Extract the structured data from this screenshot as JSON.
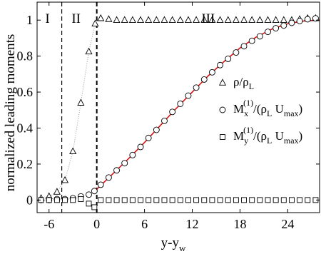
{
  "chart_data": {
    "type": "scatter",
    "title": "",
    "xlabel": "y-y_w",
    "ylabel": "normalized leading moments",
    "xlim": [
      -7.5,
      28
    ],
    "ylim": [
      -0.07,
      1.1
    ],
    "x_ticks": [
      {
        "value": -6,
        "label": "-6"
      },
      {
        "value": 0,
        "label": "0"
      },
      {
        "value": 6,
        "label": "6"
      },
      {
        "value": 12,
        "label": "12"
      },
      {
        "value": 18,
        "label": "18"
      },
      {
        "value": 24,
        "label": "24"
      }
    ],
    "y_ticks": [
      {
        "value": 0,
        "label": "0"
      },
      {
        "value": 0.2,
        "label": "0.2"
      },
      {
        "value": 0.4,
        "label": "0.4"
      },
      {
        "value": 0.6,
        "label": "0.6"
      },
      {
        "value": 0.8,
        "label": "0.8"
      },
      {
        "value": 1,
        "label": "1"
      }
    ],
    "regions": [
      {
        "label": "I",
        "x": -6.2
      },
      {
        "label": "II",
        "x": -2.6
      },
      {
        "label": "III",
        "x": 14
      }
    ],
    "boundaries": [
      -4.4,
      0
    ],
    "grid": false,
    "legend_position": "right",
    "series": [
      {
        "name": "ρ/ρ_L",
        "legend_main": "ρ/ρ",
        "legend_sub": "L",
        "marker": "triangle",
        "points": [
          [
            -7,
            0.01
          ],
          [
            -6,
            0.02
          ],
          [
            -5,
            0.045
          ],
          [
            -4,
            0.11
          ],
          [
            -3,
            0.27
          ],
          [
            -2,
            0.54
          ],
          [
            -1,
            0.825
          ],
          [
            -0.2,
            0.98
          ],
          [
            0.5,
            1.01
          ],
          [
            1.5,
            1.005
          ],
          [
            2.5,
            1.0
          ],
          [
            3.5,
            1.0
          ],
          [
            4.5,
            1.0
          ],
          [
            5.5,
            1.0
          ],
          [
            6.5,
            1.0
          ],
          [
            7.5,
            1.0
          ],
          [
            8.5,
            1.0
          ],
          [
            9.5,
            1.0
          ],
          [
            10.5,
            1.0
          ],
          [
            11.5,
            1.0
          ],
          [
            12.5,
            1.0
          ],
          [
            13.5,
            1.0
          ],
          [
            14.5,
            1.0
          ],
          [
            15.5,
            1.0
          ],
          [
            16.5,
            1.0
          ],
          [
            17.5,
            1.0
          ],
          [
            18.5,
            1.0
          ],
          [
            19.5,
            1.0
          ],
          [
            20.5,
            1.0
          ],
          [
            21.5,
            1.0
          ],
          [
            22.5,
            1.0
          ],
          [
            23.5,
            1.0
          ],
          [
            24.5,
            1.0
          ],
          [
            25.5,
            1.005
          ],
          [
            26.5,
            1.01
          ],
          [
            27.5,
            1.01
          ]
        ]
      },
      {
        "name": "M_x^(1)/(ρ_L U_max)",
        "legend_main": "M",
        "legend_sup": "(1)",
        "legend_sub": "x",
        "legend_rest": "/(ρ",
        "legend_sub2": "L",
        "legend_rest2": " U",
        "legend_sub3": "max",
        "legend_end": ")",
        "marker": "circle",
        "points": [
          [
            -7,
            0.0
          ],
          [
            -6,
            0.0
          ],
          [
            -5,
            0.005
          ],
          [
            -4,
            0.005
          ],
          [
            -3,
            0.01
          ],
          [
            -2,
            0.02
          ],
          [
            -1,
            0.03
          ],
          [
            -0.3,
            0.05
          ],
          [
            0.5,
            0.085
          ],
          [
            1.5,
            0.125
          ],
          [
            2.5,
            0.165
          ],
          [
            3.5,
            0.205
          ],
          [
            4.5,
            0.25
          ],
          [
            5.5,
            0.295
          ],
          [
            6.5,
            0.345
          ],
          [
            7.5,
            0.39
          ],
          [
            8.5,
            0.44
          ],
          [
            9.5,
            0.49
          ],
          [
            10.5,
            0.535
          ],
          [
            11.5,
            0.58
          ],
          [
            12.5,
            0.625
          ],
          [
            13.5,
            0.67
          ],
          [
            14.5,
            0.71
          ],
          [
            15.5,
            0.75
          ],
          [
            16.5,
            0.785
          ],
          [
            17.5,
            0.82
          ],
          [
            18.5,
            0.855
          ],
          [
            19.5,
            0.885
          ],
          [
            20.5,
            0.91
          ],
          [
            21.5,
            0.935
          ],
          [
            22.5,
            0.955
          ],
          [
            23.5,
            0.97
          ],
          [
            24.5,
            0.985
          ],
          [
            25.5,
            0.995
          ],
          [
            26.5,
            1.005
          ],
          [
            27.5,
            1.01
          ]
        ]
      },
      {
        "name": "M_y^(1)/(ρ_L U_max)",
        "legend_main": "M",
        "legend_sup": "(1)",
        "legend_sub": "y",
        "legend_rest": "/(ρ",
        "legend_sub2": "L",
        "legend_rest2": " U",
        "legend_sub3": "max",
        "legend_end": ")",
        "marker": "square",
        "points": [
          [
            -7,
            0.0
          ],
          [
            -6,
            0.0
          ],
          [
            -5,
            0.0
          ],
          [
            -4,
            0.0
          ],
          [
            -3,
            0.0
          ],
          [
            -2,
            0.005
          ],
          [
            -1,
            -0.02
          ],
          [
            -0.3,
            -0.04
          ],
          [
            0.5,
            0.0
          ],
          [
            1.5,
            0.0
          ],
          [
            2.5,
            0.0
          ],
          [
            3.5,
            0.0
          ],
          [
            4.5,
            0.0
          ],
          [
            5.5,
            0.0
          ],
          [
            6.5,
            0.0
          ],
          [
            7.5,
            0.0
          ],
          [
            8.5,
            0.0
          ],
          [
            9.5,
            0.0
          ],
          [
            10.5,
            0.0
          ],
          [
            11.5,
            0.0
          ],
          [
            12.5,
            0.0
          ],
          [
            13.5,
            0.0
          ],
          [
            14.5,
            0.0
          ],
          [
            15.5,
            0.0
          ],
          [
            16.5,
            0.0
          ],
          [
            17.5,
            0.0
          ],
          [
            18.5,
            0.0
          ],
          [
            19.5,
            0.0
          ],
          [
            20.5,
            0.0
          ],
          [
            21.5,
            0.0
          ],
          [
            22.5,
            0.0
          ],
          [
            23.5,
            0.0
          ],
          [
            24.5,
            0.0
          ],
          [
            25.5,
            0.0
          ],
          [
            26.5,
            0.0
          ],
          [
            27.5,
            0.0
          ]
        ]
      }
    ],
    "fit_curve": {
      "color": "#dd1111",
      "points": [
        [
          0,
          0.06
        ],
        [
          2,
          0.145
        ],
        [
          4,
          0.23
        ],
        [
          6,
          0.32
        ],
        [
          8,
          0.415
        ],
        [
          10,
          0.51
        ],
        [
          12,
          0.6
        ],
        [
          14,
          0.69
        ],
        [
          16,
          0.77
        ],
        [
          18,
          0.845
        ],
        [
          20,
          0.905
        ],
        [
          22,
          0.95
        ],
        [
          24,
          0.98
        ],
        [
          26,
          0.995
        ],
        [
          28,
          1.0
        ]
      ]
    },
    "guide_line": {
      "style": "dotted",
      "color": "#999999",
      "points": [
        [
          -7,
          0.01
        ],
        [
          -6,
          0.02
        ],
        [
          -5,
          0.045
        ],
        [
          -4,
          0.11
        ],
        [
          -3,
          0.27
        ],
        [
          -2,
          0.54
        ],
        [
          -1,
          0.825
        ],
        [
          -0.2,
          0.98
        ]
      ]
    }
  }
}
